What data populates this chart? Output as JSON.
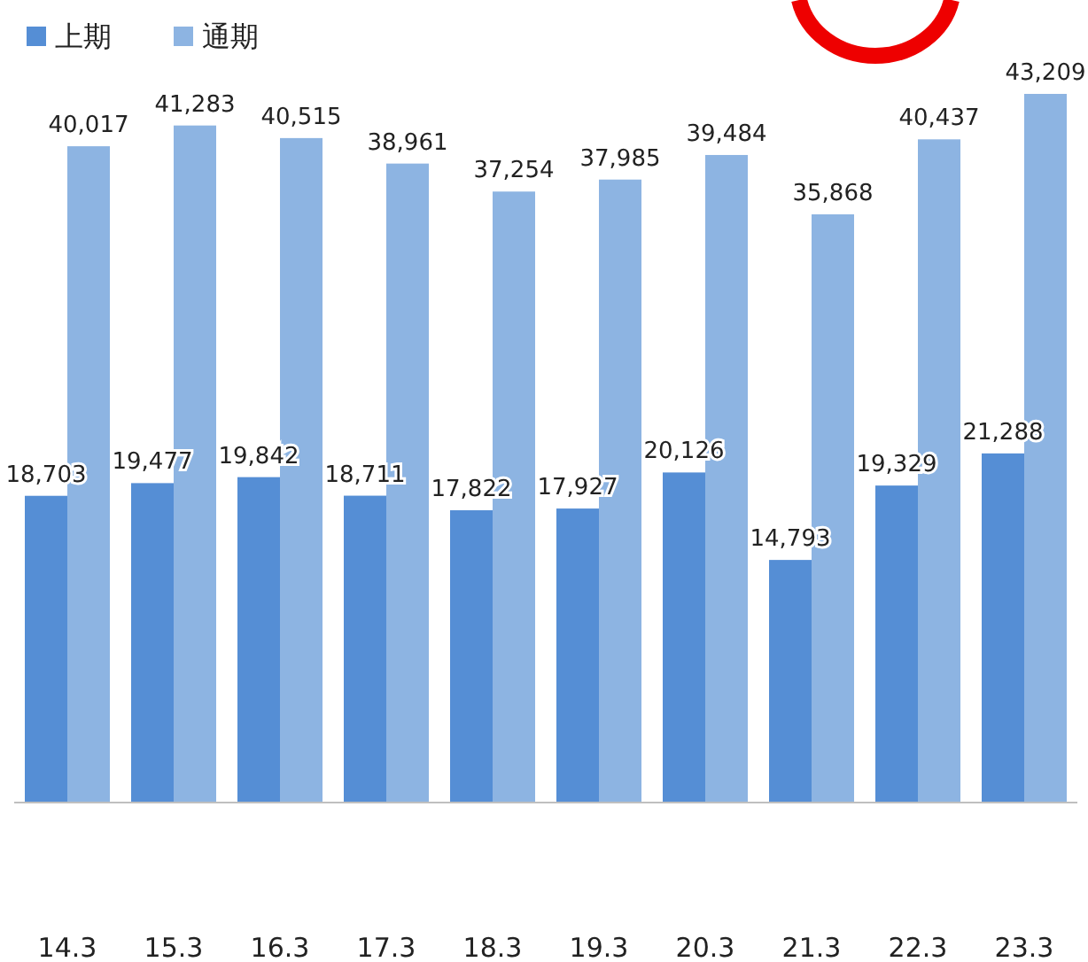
{
  "chart_data": {
    "type": "bar",
    "categories": [
      "14.3",
      "15.3",
      "16.3",
      "17.3",
      "18.3",
      "19.3",
      "20.3",
      "21.3",
      "22.3",
      "23.3"
    ],
    "relative": false,
    "legend": "top left",
    "series": [
      {
        "name": "上期",
        "color": "#558ed5",
        "values": [
          18703,
          19477,
          19842,
          18711,
          17822,
          17927,
          20126,
          14793,
          19329,
          21288
        ],
        "value_labels": [
          "18,703",
          "19,477",
          "19,842",
          "18,711",
          "17,822",
          "17,927",
          "20,126",
          "14,793",
          "19,329",
          "21,288"
        ]
      },
      {
        "name": "通期",
        "color": "#8db4e2",
        "values": [
          40017,
          41283,
          40515,
          38961,
          37254,
          37985,
          39484,
          35868,
          40437,
          43209
        ],
        "value_labels": [
          "40,017",
          "41,283",
          "40,515",
          "38,961",
          "37,254",
          "37,985",
          "39,484",
          "35,868",
          "40,437",
          "43,209"
        ]
      }
    ]
  }
}
